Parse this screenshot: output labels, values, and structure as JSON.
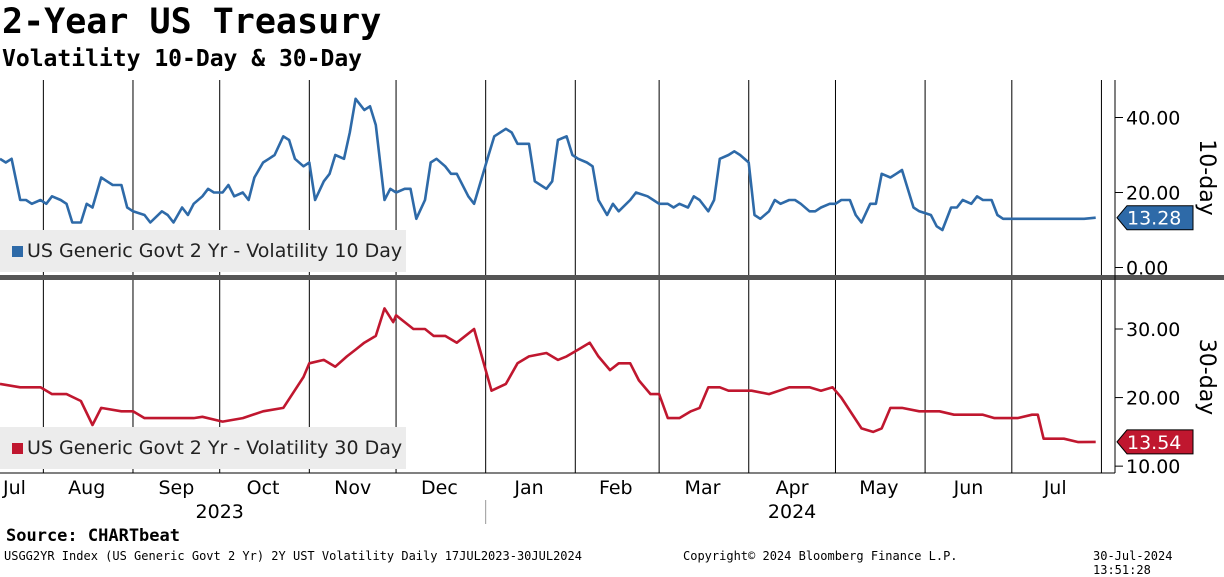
{
  "header": {
    "title": "2-Year US Treasury",
    "subtitle": "Volatility 10-Day & 30-Day"
  },
  "footer": {
    "source": "Source: CHARTbeat",
    "description": "USGG2YR Index (US Generic Govt 2 Yr) 2Y UST Volatility  Daily 17JUL2023-30JUL2024",
    "copyright": "Copyright© 2024 Bloomberg Finance L.P.",
    "timestamp": "30-Jul-2024 13:51:28"
  },
  "colors": {
    "series_10d": "#2e6aa8",
    "series_30d": "#c0172f",
    "divider": "#555555"
  },
  "chart_data": [
    {
      "type": "line",
      "panel_label": "10-day",
      "legend": "US Generic Govt 2 Yr - Volatility 10 Day",
      "last_value_label": "13.28",
      "ylim": [
        -2,
        50
      ],
      "yticks": [
        0,
        20,
        40
      ],
      "ytick_labels": [
        "0.00",
        "20.00",
        "40.00"
      ],
      "grid": "vertical",
      "series": [
        {
          "name": "US Generic Govt 2 Yr - Volatility 10 Day",
          "x": [
            "2023-07-17",
            "2023-07-19",
            "2023-07-21",
            "2023-07-24",
            "2023-07-26",
            "2023-07-28",
            "2023-07-31",
            "2023-08-02",
            "2023-08-04",
            "2023-08-07",
            "2023-08-09",
            "2023-08-11",
            "2023-08-14",
            "2023-08-16",
            "2023-08-18",
            "2023-08-21",
            "2023-08-23",
            "2023-08-25",
            "2023-08-28",
            "2023-08-30",
            "2023-09-01",
            "2023-09-05",
            "2023-09-07",
            "2023-09-11",
            "2023-09-13",
            "2023-09-15",
            "2023-09-18",
            "2023-09-20",
            "2023-09-22",
            "2023-09-25",
            "2023-09-27",
            "2023-09-29",
            "2023-10-02",
            "2023-10-04",
            "2023-10-06",
            "2023-10-09",
            "2023-10-11",
            "2023-10-13",
            "2023-10-16",
            "2023-10-18",
            "2023-10-20",
            "2023-10-23",
            "2023-10-25",
            "2023-10-27",
            "2023-10-30",
            "2023-11-01",
            "2023-11-03",
            "2023-11-06",
            "2023-11-08",
            "2023-11-10",
            "2023-11-13",
            "2023-11-15",
            "2023-11-17",
            "2023-11-20",
            "2023-11-22",
            "2023-11-24",
            "2023-11-27",
            "2023-11-29",
            "2023-12-01",
            "2023-12-04",
            "2023-12-06",
            "2023-12-08",
            "2023-12-11",
            "2023-12-13",
            "2023-12-15",
            "2023-12-18",
            "2023-12-20",
            "2023-12-22",
            "2023-12-26",
            "2023-12-28",
            "2024-01-02",
            "2024-01-04",
            "2024-01-08",
            "2024-01-10",
            "2024-01-12",
            "2024-01-16",
            "2024-01-18",
            "2024-01-22",
            "2024-01-24",
            "2024-01-26",
            "2024-01-29",
            "2024-01-31",
            "2024-02-02",
            "2024-02-05",
            "2024-02-07",
            "2024-02-09",
            "2024-02-12",
            "2024-02-14",
            "2024-02-16",
            "2024-02-20",
            "2024-02-22",
            "2024-02-26",
            "2024-02-28",
            "2024-03-01",
            "2024-03-04",
            "2024-03-06",
            "2024-03-08",
            "2024-03-11",
            "2024-03-13",
            "2024-03-15",
            "2024-03-18",
            "2024-03-20",
            "2024-03-22",
            "2024-03-25",
            "2024-03-27",
            "2024-03-29",
            "2024-04-01",
            "2024-04-03",
            "2024-04-05",
            "2024-04-08",
            "2024-04-10",
            "2024-04-12",
            "2024-04-15",
            "2024-04-17",
            "2024-04-19",
            "2024-04-22",
            "2024-04-24",
            "2024-04-26",
            "2024-04-29",
            "2024-05-01",
            "2024-05-03",
            "2024-05-06",
            "2024-05-08",
            "2024-05-10",
            "2024-05-13",
            "2024-05-15",
            "2024-05-17",
            "2024-05-20",
            "2024-05-22",
            "2024-05-24",
            "2024-05-28",
            "2024-05-30",
            "2024-06-03",
            "2024-06-05",
            "2024-06-07",
            "2024-06-10",
            "2024-06-12",
            "2024-06-14",
            "2024-06-17",
            "2024-06-19",
            "2024-06-21",
            "2024-06-24",
            "2024-06-26",
            "2024-06-28",
            "2024-07-01",
            "2024-07-03",
            "2024-07-05",
            "2024-07-08",
            "2024-07-10",
            "2024-07-12",
            "2024-07-15",
            "2024-07-17",
            "2024-07-19",
            "2024-07-22",
            "2024-07-24",
            "2024-07-26",
            "2024-07-30"
          ],
          "y": [
            29,
            28,
            29,
            18,
            18,
            17,
            18,
            17,
            19,
            18,
            17,
            12,
            12,
            17,
            16,
            24,
            23,
            22,
            22,
            16,
            15,
            14,
            12,
            15,
            14,
            12,
            16,
            14,
            17,
            19,
            21,
            20,
            20,
            22,
            19,
            20,
            18,
            24,
            28,
            29,
            30,
            35,
            34,
            29,
            27,
            28,
            18,
            23,
            25,
            30,
            29,
            36,
            45,
            42,
            43,
            38,
            18,
            21,
            20,
            21,
            21,
            13,
            18,
            28,
            29,
            27,
            25,
            25,
            19,
            17,
            30,
            35,
            37,
            36,
            33,
            33,
            23,
            21,
            23,
            34,
            35,
            30,
            29,
            28,
            27,
            18,
            14,
            17,
            15,
            18,
            20,
            19,
            18,
            17,
            17,
            16,
            17,
            16,
            19,
            18,
            15,
            18,
            29,
            30,
            31,
            30,
            28,
            14,
            13,
            15,
            18,
            17,
            18,
            18,
            17,
            15,
            15,
            16,
            17,
            17,
            18,
            18,
            14,
            12,
            17,
            17,
            25,
            24,
            25,
            26,
            16,
            15,
            14,
            11,
            10,
            16,
            16,
            18,
            17,
            19,
            18,
            18,
            14,
            13,
            13,
            13,
            13,
            13,
            13,
            13,
            13,
            13,
            13,
            13,
            13,
            13,
            13.28
          ]
        }
      ]
    },
    {
      "type": "line",
      "panel_label": "30-day",
      "legend": "US Generic Govt 2 Yr - Volatility 30 Day",
      "last_value_label": "13.54",
      "ylim": [
        9,
        37
      ],
      "yticks": [
        10,
        20,
        30
      ],
      "ytick_labels": [
        "10.00",
        "20.00",
        "30.00"
      ],
      "grid": "vertical",
      "series": [
        {
          "name": "US Generic Govt 2 Yr - Volatility 30 Day",
          "x": [
            "2023-07-17",
            "2023-07-24",
            "2023-07-31",
            "2023-08-04",
            "2023-08-09",
            "2023-08-14",
            "2023-08-18",
            "2023-08-21",
            "2023-08-28",
            "2023-09-01",
            "2023-09-05",
            "2023-09-11",
            "2023-09-18",
            "2023-09-22",
            "2023-09-25",
            "2023-10-02",
            "2023-10-09",
            "2023-10-16",
            "2023-10-23",
            "2023-10-30",
            "2023-11-01",
            "2023-11-06",
            "2023-11-10",
            "2023-11-14",
            "2023-11-17",
            "2023-11-20",
            "2023-11-24",
            "2023-11-27",
            "2023-11-30",
            "2023-12-01",
            "2023-12-04",
            "2023-12-07",
            "2023-12-11",
            "2023-12-14",
            "2023-12-18",
            "2023-12-22",
            "2023-12-28",
            "2024-01-03",
            "2024-01-08",
            "2024-01-12",
            "2024-01-16",
            "2024-01-22",
            "2024-01-26",
            "2024-01-29",
            "2024-02-02",
            "2024-02-06",
            "2024-02-09",
            "2024-02-13",
            "2024-02-16",
            "2024-02-20",
            "2024-02-23",
            "2024-02-27",
            "2024-03-01",
            "2024-03-04",
            "2024-03-08",
            "2024-03-12",
            "2024-03-15",
            "2024-03-18",
            "2024-03-22",
            "2024-03-25",
            "2024-04-01",
            "2024-04-02",
            "2024-04-08",
            "2024-04-15",
            "2024-04-22",
            "2024-04-26",
            "2024-04-30",
            "2024-05-03",
            "2024-05-10",
            "2024-05-14",
            "2024-05-17",
            "2024-05-20",
            "2024-05-24",
            "2024-05-30",
            "2024-06-03",
            "2024-06-06",
            "2024-06-11",
            "2024-06-17",
            "2024-06-21",
            "2024-06-25",
            "2024-06-28",
            "2024-07-03",
            "2024-07-08",
            "2024-07-10",
            "2024-07-12",
            "2024-07-15",
            "2024-07-19",
            "2024-07-24",
            "2024-07-30"
          ],
          "y": [
            22,
            21.5,
            21.5,
            20.5,
            20.5,
            19.5,
            16,
            18.5,
            18,
            18,
            17,
            17,
            17,
            17,
            17.2,
            16.5,
            17,
            18,
            18.5,
            23,
            25,
            25.5,
            24.5,
            26,
            27,
            28,
            29,
            33,
            31,
            32,
            31,
            30,
            30,
            29,
            29,
            28,
            30,
            21,
            22,
            25,
            26,
            26.5,
            25.5,
            26,
            27,
            28,
            26,
            24,
            25,
            25,
            22.5,
            20.5,
            20.5,
            17,
            17,
            18,
            18.5,
            21.5,
            21.5,
            21,
            21,
            21,
            20.5,
            21.5,
            21.5,
            21,
            21.5,
            20,
            15.5,
            15,
            15.5,
            18.5,
            18.5,
            18,
            18,
            18,
            17.5,
            17.5,
            17.5,
            17,
            17,
            17,
            17.5,
            17.5,
            14,
            14,
            14,
            13.5,
            13.54
          ]
        }
      ]
    }
  ],
  "x_axis": {
    "months": [
      {
        "label": "Jul",
        "date": "2023-07-22"
      },
      {
        "label": "Aug",
        "date": "2023-08-16"
      },
      {
        "label": "Sep",
        "date": "2023-09-16"
      },
      {
        "label": "Oct",
        "date": "2023-10-16"
      },
      {
        "label": "Nov",
        "date": "2023-11-16"
      },
      {
        "label": "Dec",
        "date": "2023-12-16"
      },
      {
        "label": "Jan",
        "date": "2024-01-16"
      },
      {
        "label": "Feb",
        "date": "2024-02-15"
      },
      {
        "label": "Mar",
        "date": "2024-03-16"
      },
      {
        "label": "Apr",
        "date": "2024-04-16"
      },
      {
        "label": "May",
        "date": "2024-05-16"
      },
      {
        "label": "Jun",
        "date": "2024-06-16"
      },
      {
        "label": "Jul",
        "date": "2024-07-16"
      }
    ],
    "gridlines": [
      "2023-08-01",
      "2023-09-01",
      "2023-10-01",
      "2023-11-01",
      "2023-12-01",
      "2024-01-01",
      "2024-02-01",
      "2024-03-01",
      "2024-04-01",
      "2024-05-01",
      "2024-06-01",
      "2024-07-01",
      "2024-08-01"
    ],
    "years": [
      {
        "label": "2023",
        "date": "2023-10-01"
      },
      {
        "label": "2024",
        "date": "2024-04-16"
      }
    ],
    "year_divider": "2024-01-01",
    "start": "2023-07-17",
    "end": "2024-08-05"
  }
}
